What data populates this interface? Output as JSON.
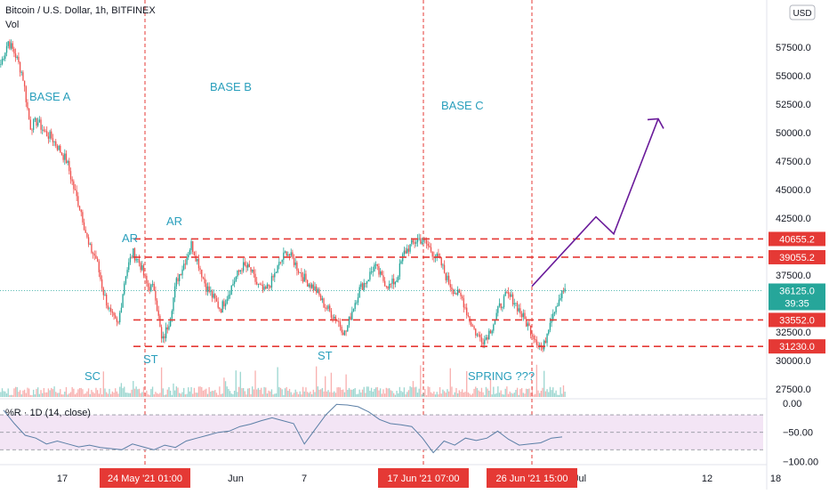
{
  "title": "Bitcoin / U.S. Dollar, 1h, BITFINEX",
  "volume_label": "Vol",
  "indicator_label": "%R · 1D (14, close)",
  "currency_badge": "USD",
  "colors": {
    "up": "#26a69a",
    "down": "#ef5350",
    "level_line": "#e53935",
    "indicator_line": "#5b7fa6",
    "indicator_band": "#f3e5f5",
    "arrow": "#6a1b9a",
    "annotation": "#2a9fbc"
  },
  "chart_data": [
    {
      "type": "candlestick",
      "title": "Bitcoin / U.S. Dollar, 1h, BITFINEX",
      "y_ticks": [
        "57500.0",
        "55000.0",
        "52500.0",
        "50000.0",
        "47500.0",
        "45000.0",
        "42500.0",
        "37500.0",
        "32500.0",
        "30000.0",
        "27500.0"
      ],
      "ylim": [
        25000,
        60000
      ],
      "x_ticks": [
        "17",
        "Jun",
        "7",
        "Jul",
        "12",
        "18"
      ],
      "x_highlight_labels": [
        "24 May '21  01:00",
        "17 Jun '21  07:00",
        "26 Jun '21  15:00"
      ],
      "price_levels": [
        {
          "value": 40655.2,
          "label": "40655.2"
        },
        {
          "value": 39055.2,
          "label": "39055.2"
        },
        {
          "value": 33552.0,
          "label": "33552.0"
        },
        {
          "value": 31230.0,
          "label": "31230.0"
        }
      ],
      "current_price": {
        "value": 36125.0,
        "label": "36125.0",
        "countdown": "39:35"
      },
      "annotations": [
        "BASE A",
        "BASE B",
        "BASE C",
        "AR",
        "AR",
        "SC",
        "ST",
        "ST",
        "SPRING ???"
      ],
      "projection_path": [
        36500,
        42600,
        41100,
        51200
      ],
      "price_path": [
        56000,
        58000,
        56800,
        55000,
        50500,
        51000,
        50000,
        49500,
        48500,
        47500,
        45000,
        43000,
        40000,
        39000,
        36000,
        34000,
        33000,
        37500,
        39500,
        38500,
        36500,
        36300,
        31500,
        33500,
        37000,
        38500,
        40200,
        38500,
        36500,
        35500,
        34500,
        35800,
        37200,
        38300,
        38000,
        36600,
        36000,
        37000,
        38400,
        39600,
        38700,
        37500,
        36800,
        36200,
        35000,
        34200,
        33500,
        32300,
        34500,
        36300,
        37100,
        38300,
        37200,
        36500,
        37100,
        39400,
        40100,
        40700,
        40300,
        39400,
        38600,
        37000,
        36000,
        35400,
        33500,
        32200,
        31800,
        32900,
        34600,
        35700,
        35300,
        34100,
        33000,
        31900,
        30900,
        33700,
        35200,
        36300
      ]
    },
    {
      "type": "line",
      "title": "%R · 1D (14, close)",
      "y_ticks": [
        "0.00",
        "−50.00",
        "−100.00"
      ],
      "ylim": [
        -100,
        0
      ],
      "values": [
        -12,
        -35,
        -55,
        -60,
        -70,
        -65,
        -70,
        -75,
        -72,
        -76,
        -78,
        -80,
        -70,
        -75,
        -80,
        -72,
        -76,
        -65,
        -60,
        -55,
        -50,
        -48,
        -40,
        -36,
        -30,
        -25,
        -30,
        -35,
        -70,
        -45,
        -20,
        -2,
        -3,
        -6,
        -15,
        -28,
        -35,
        -37,
        -40,
        -60,
        -85,
        -65,
        -72,
        -60,
        -64,
        -60,
        -48,
        -62,
        -72,
        -70,
        -68,
        -60,
        -58
      ]
    }
  ]
}
